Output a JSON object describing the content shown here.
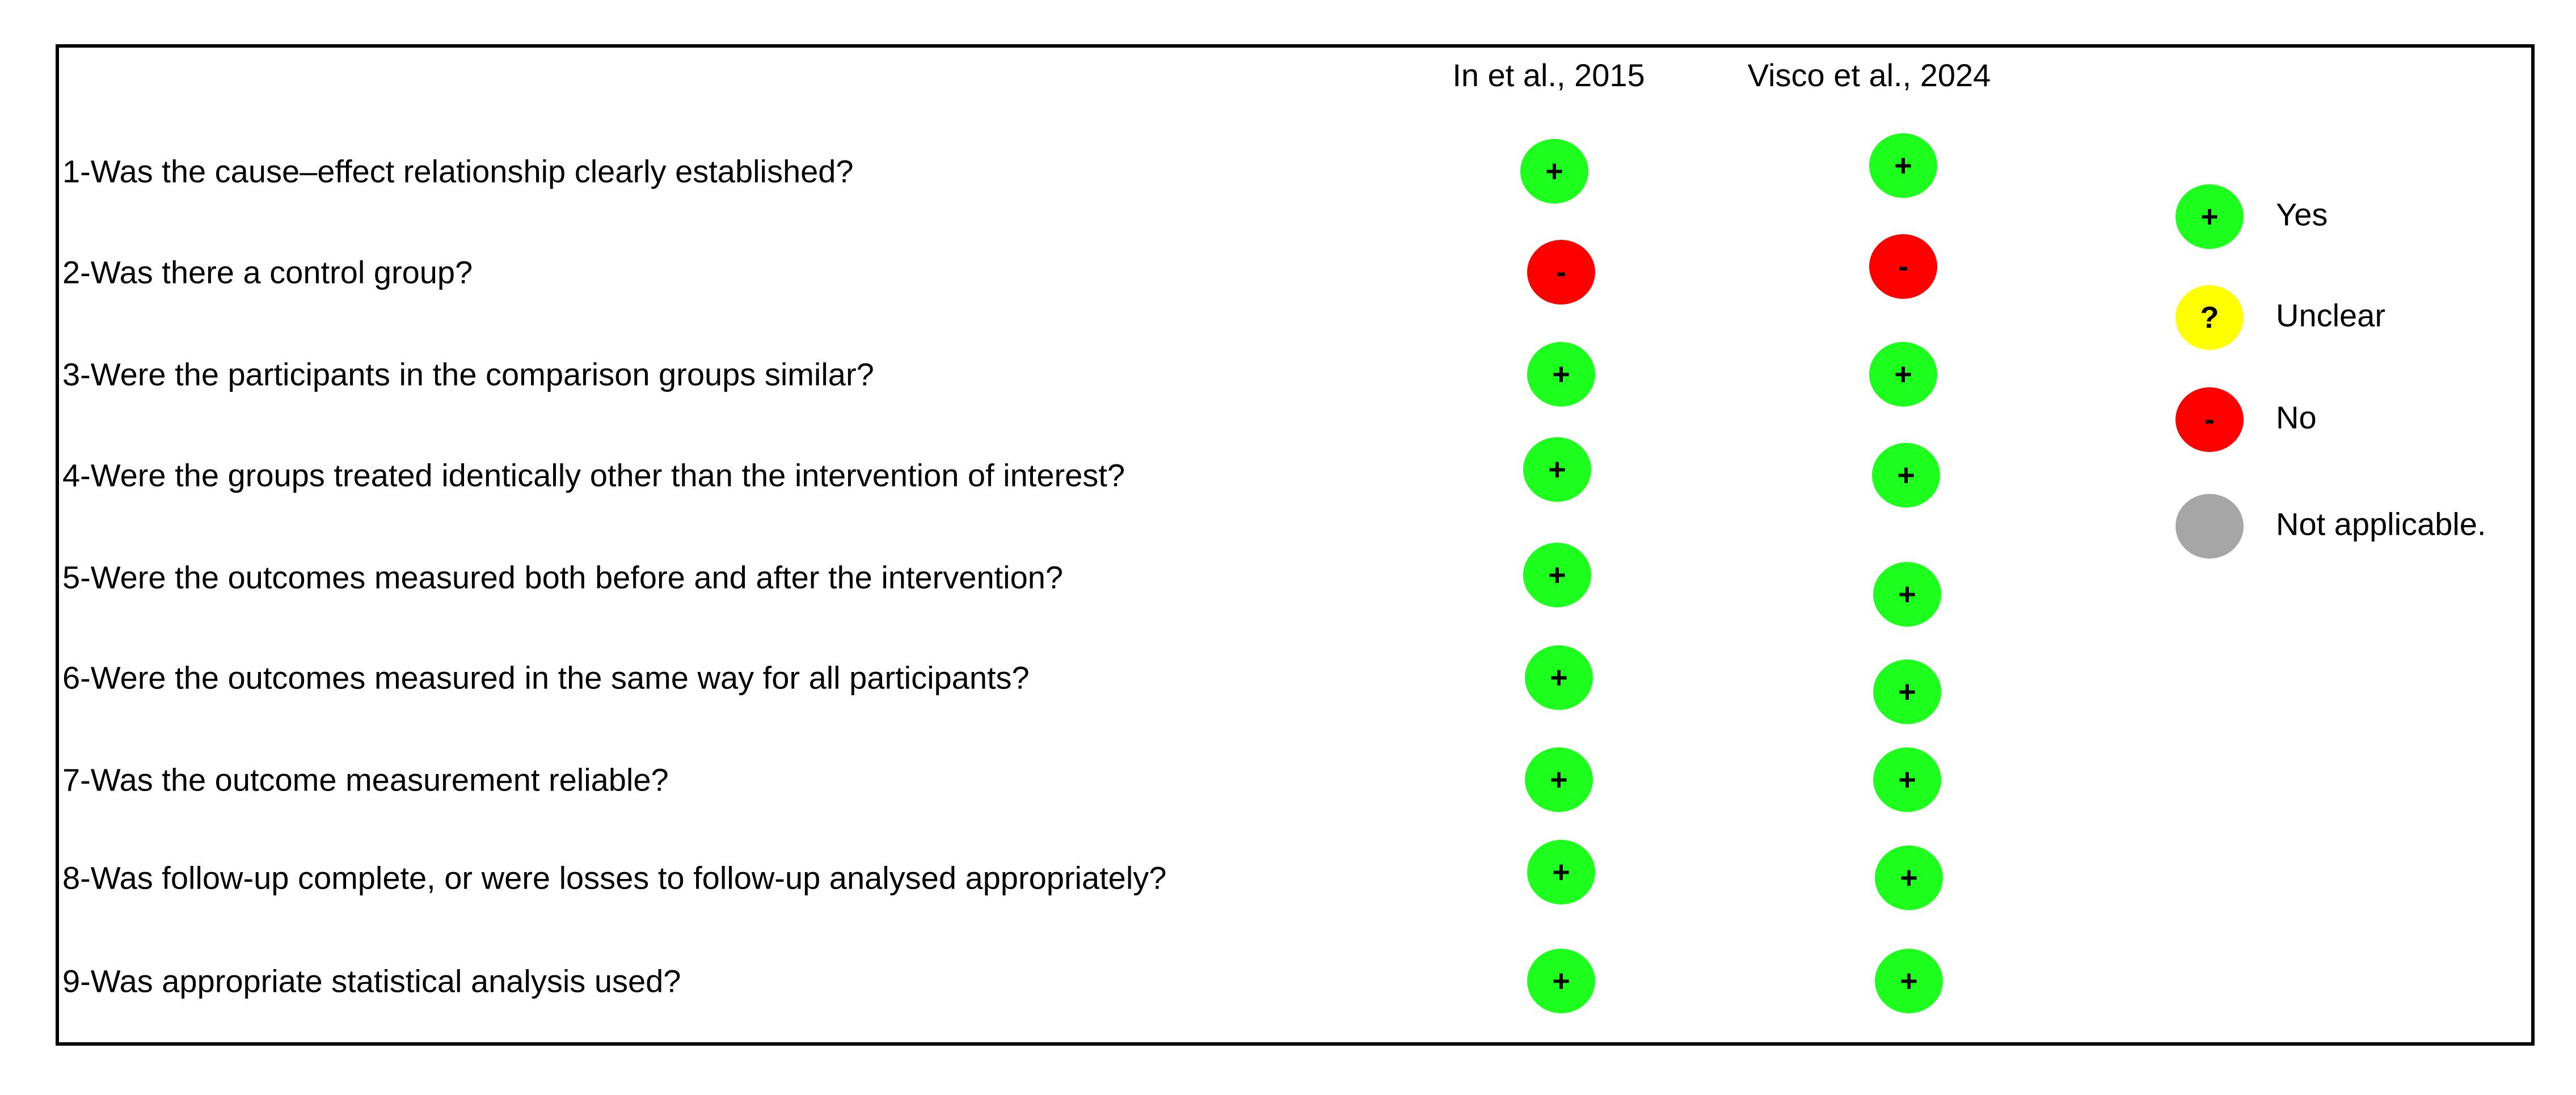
{
  "colors": {
    "yes": "#1dff1d",
    "unclear": "#ffff00",
    "no": "#ff0000",
    "not_applicable": "#a6a6a6"
  },
  "studies": [
    "In et al., 2015",
    "Visco et al., 2024"
  ],
  "questions": [
    {
      "text": "1-Was the cause–effect relationship clearly established?",
      "ratings": [
        "yes",
        "yes"
      ]
    },
    {
      "text": "2-Was there a control group?",
      "ratings": [
        "no",
        "no"
      ]
    },
    {
      "text": "3-Were the participants in the comparison groups similar?",
      "ratings": [
        "yes",
        "yes"
      ]
    },
    {
      "text": "4-Were the groups treated identically other than the intervention of interest?",
      "ratings": [
        "yes",
        "yes"
      ]
    },
    {
      "text": "5-Were the outcomes measured both before and after the intervention?",
      "ratings": [
        "yes",
        "yes"
      ]
    },
    {
      "text": "6-Were the outcomes measured in the same way for all participants?",
      "ratings": [
        "yes",
        "yes"
      ]
    },
    {
      "text": "7-Was the outcome measurement reliable?",
      "ratings": [
        "yes",
        "yes"
      ]
    },
    {
      "text": "8-Was follow-up complete, or were losses to follow-up analysed appropriately?",
      "ratings": [
        "yes",
        "yes"
      ]
    },
    {
      "text": "9-Was appropriate statistical analysis used?",
      "ratings": [
        "yes",
        "yes"
      ]
    }
  ],
  "legend": [
    {
      "key": "yes",
      "symbol": "+",
      "label": "Yes"
    },
    {
      "key": "unclear",
      "symbol": "?",
      "label": "Unclear"
    },
    {
      "key": "no",
      "symbol": "-",
      "label": "No"
    },
    {
      "key": "not_applicable",
      "symbol": "",
      "label": "Not applicable."
    }
  ]
}
